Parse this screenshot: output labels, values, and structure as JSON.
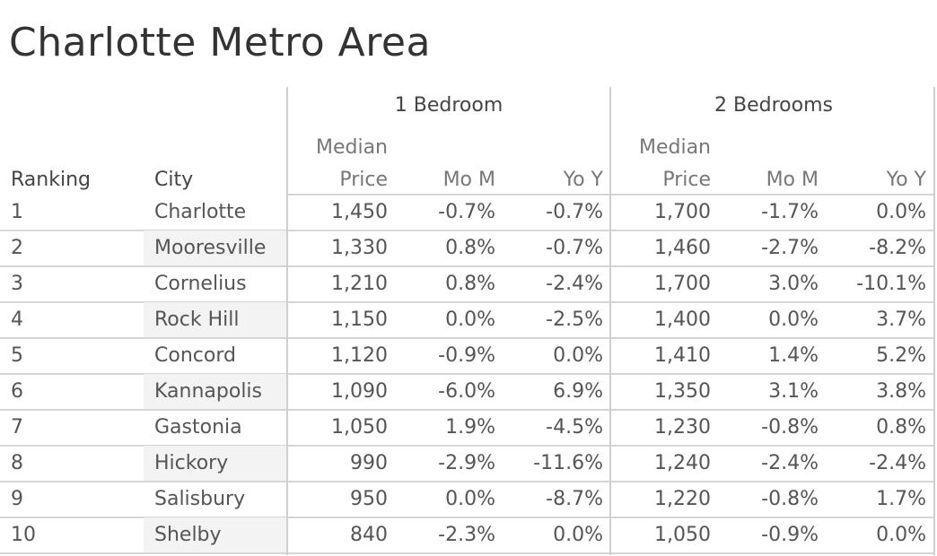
{
  "title": "Charlotte Metro Area",
  "chart_data": {
    "type": "table",
    "title": "Charlotte Metro Area",
    "groups": [
      "1 Bedroom",
      "2 Bedrooms"
    ],
    "columns": {
      "ranking": "Ranking",
      "city": "City",
      "median_line1": "Median",
      "median_line2": "Price",
      "mom": "Mo M",
      "yoy": "Yo Y"
    },
    "rows": [
      {
        "rank": "1",
        "city": "Charlotte",
        "b1_price": "1,450",
        "b1_mom": "-0.7%",
        "b1_yoy": "-0.7%",
        "b2_price": "1,700",
        "b2_mom": "-1.7%",
        "b2_yoy": "0.0%"
      },
      {
        "rank": "2",
        "city": "Mooresville",
        "b1_price": "1,330",
        "b1_mom": "0.8%",
        "b1_yoy": "-0.7%",
        "b2_price": "1,460",
        "b2_mom": "-2.7%",
        "b2_yoy": "-8.2%"
      },
      {
        "rank": "3",
        "city": "Cornelius",
        "b1_price": "1,210",
        "b1_mom": "0.8%",
        "b1_yoy": "-2.4%",
        "b2_price": "1,700",
        "b2_mom": "3.0%",
        "b2_yoy": "-10.1%"
      },
      {
        "rank": "4",
        "city": "Rock Hill",
        "b1_price": "1,150",
        "b1_mom": "0.0%",
        "b1_yoy": "-2.5%",
        "b2_price": "1,400",
        "b2_mom": "0.0%",
        "b2_yoy": "3.7%"
      },
      {
        "rank": "5",
        "city": "Concord",
        "b1_price": "1,120",
        "b1_mom": "-0.9%",
        "b1_yoy": "0.0%",
        "b2_price": "1,410",
        "b2_mom": "1.4%",
        "b2_yoy": "5.2%"
      },
      {
        "rank": "6",
        "city": "Kannapolis",
        "b1_price": "1,090",
        "b1_mom": "-6.0%",
        "b1_yoy": "6.9%",
        "b2_price": "1,350",
        "b2_mom": "3.1%",
        "b2_yoy": "3.8%"
      },
      {
        "rank": "7",
        "city": "Gastonia",
        "b1_price": "1,050",
        "b1_mom": "1.9%",
        "b1_yoy": "-4.5%",
        "b2_price": "1,230",
        "b2_mom": "-0.8%",
        "b2_yoy": "0.8%"
      },
      {
        "rank": "8",
        "city": "Hickory",
        "b1_price": "990",
        "b1_mom": "-2.9%",
        "b1_yoy": "-11.6%",
        "b2_price": "1,240",
        "b2_mom": "-2.4%",
        "b2_yoy": "-2.4%"
      },
      {
        "rank": "9",
        "city": "Salisbury",
        "b1_price": "950",
        "b1_mom": "0.0%",
        "b1_yoy": "-8.7%",
        "b2_price": "1,220",
        "b2_mom": "-0.8%",
        "b2_yoy": "1.7%"
      },
      {
        "rank": "10",
        "city": "Shelby",
        "b1_price": "840",
        "b1_mom": "-2.3%",
        "b1_yoy": "0.0%",
        "b2_price": "1,050",
        "b2_mom": "-0.9%",
        "b2_yoy": "0.0%"
      }
    ]
  }
}
